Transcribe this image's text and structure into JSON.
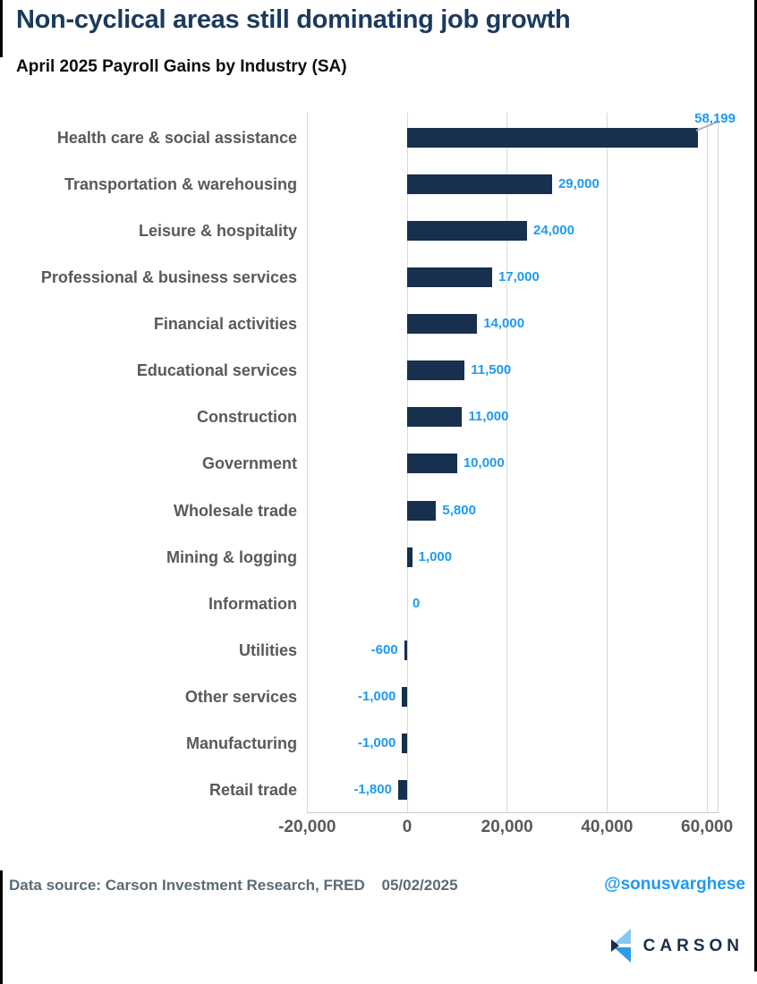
{
  "page": {
    "title": "Non-cyclical areas still dominating job growth",
    "subtitle": "April 2025 Payroll Gains by Industry (SA)"
  },
  "chart_data": {
    "type": "bar",
    "orientation": "horizontal",
    "title": "Non-cyclical areas still dominating job growth",
    "subtitle": "April 2025 Payroll Gains by Industry (SA)",
    "categories": [
      "Health care & social assistance",
      "Transportation & warehousing",
      "Leisure & hospitality",
      "Professional & business services",
      "Financial activities",
      "Educational services",
      "Construction",
      "Government",
      "Wholesale trade",
      "Mining & logging",
      "Information",
      "Utilities",
      "Other services",
      "Manufacturing",
      "Retail trade"
    ],
    "values": [
      58199,
      29000,
      24000,
      17000,
      14000,
      11500,
      11000,
      10000,
      5800,
      1000,
      0,
      -600,
      -1000,
      -1000,
      -1800
    ],
    "value_labels": [
      "58,199",
      "29,000",
      "24,000",
      "17,000",
      "14,000",
      "11,500",
      "11,000",
      "10,000",
      "5,800",
      "1,000",
      "0",
      "-600",
      "-1,000",
      "-1,000",
      "-1,800"
    ],
    "x_ticks": [
      {
        "value": -20000,
        "label": "-20,000"
      },
      {
        "value": 0,
        "label": "0"
      },
      {
        "value": 20000,
        "label": "20,000"
      },
      {
        "value": 40000,
        "label": "40,000"
      },
      {
        "value": 60000,
        "label": "60,000"
      }
    ],
    "xlim": [
      -20000,
      62200
    ],
    "grid": true,
    "legend": false,
    "callout_index": 0,
    "bar_color": "#16304d",
    "value_label_color": "#1f9af0",
    "category_label_color": "#595959",
    "gridline_color": "#d9d9d9"
  },
  "footer": {
    "datasource_label": "Data source:",
    "datasource_value": "Carson Investment Research, FRED",
    "date": "05/02/2025",
    "handle": "@sonusvarghese",
    "logo_text": "CARSON"
  },
  "colors": {
    "title_navy": "#1b3a5e",
    "bar_navy": "#16304d",
    "accent_blue": "#1f9af0",
    "footer_gray": "#5b6b76",
    "logo_light_blue": "#85c9f1",
    "logo_mid_blue": "#2f9ce8",
    "logo_navy": "#16304d"
  }
}
